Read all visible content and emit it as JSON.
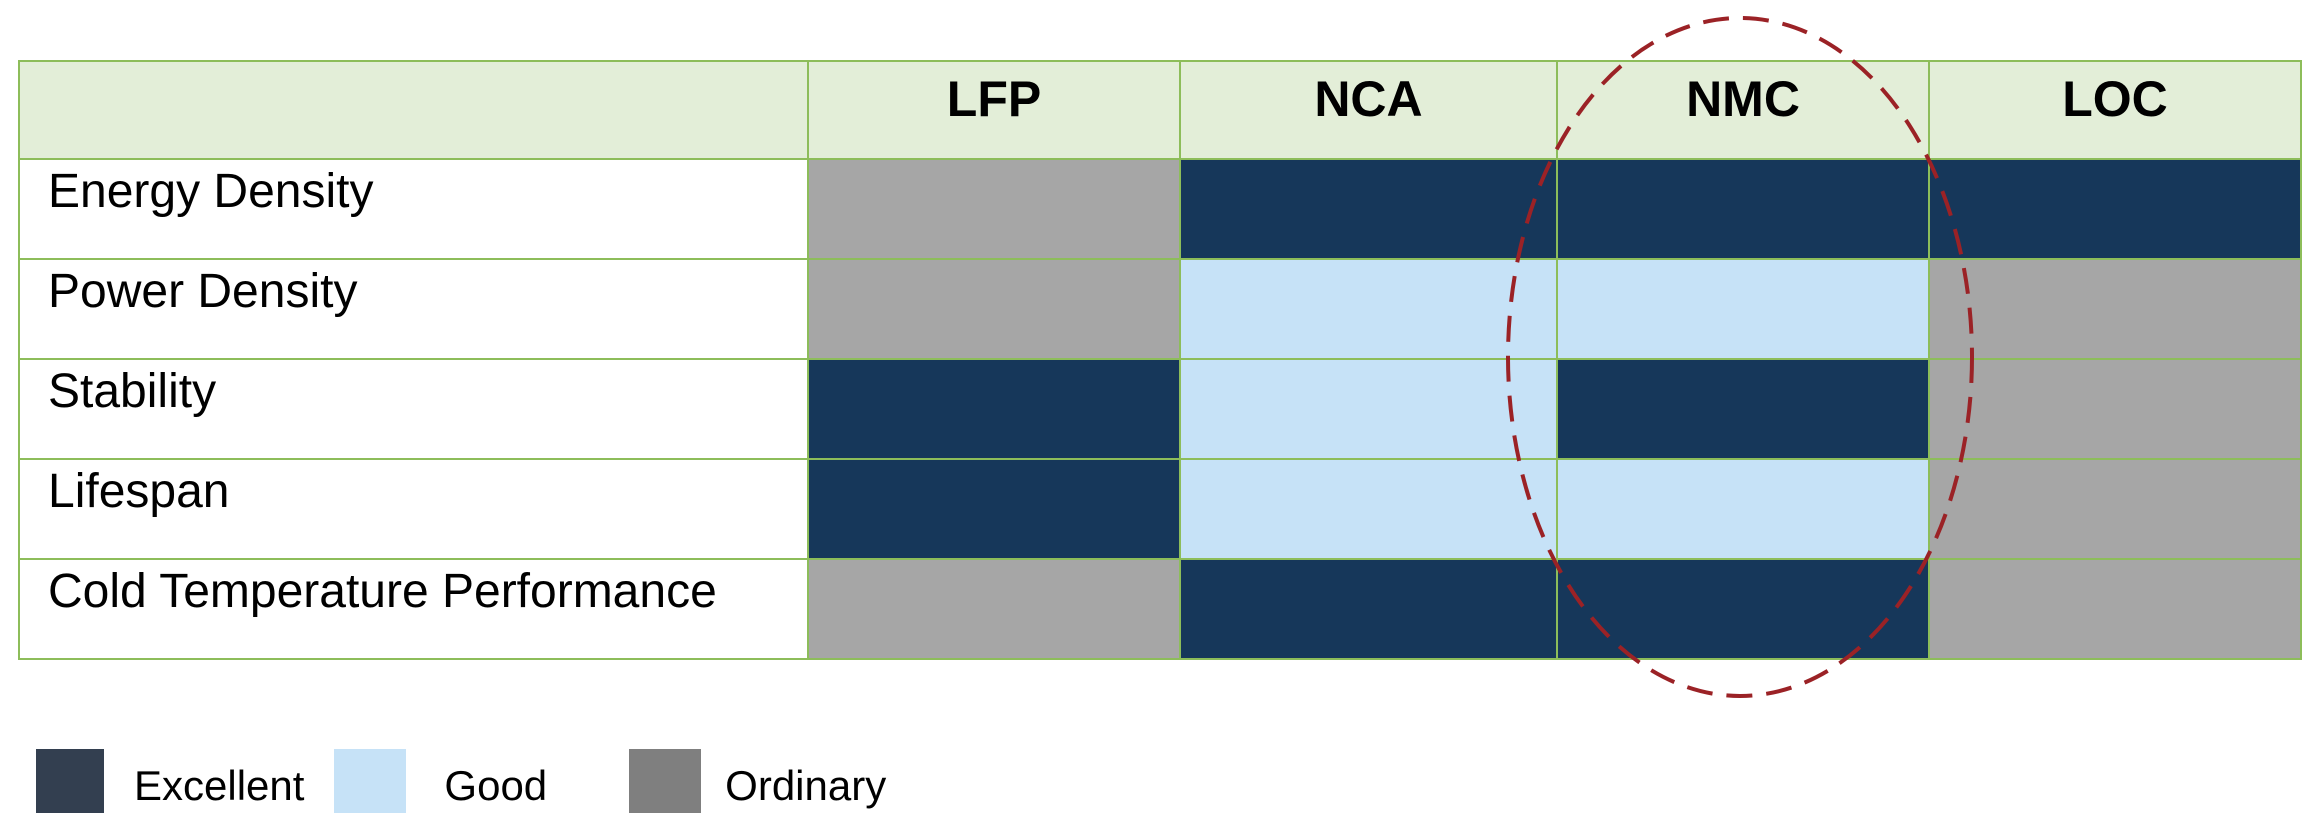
{
  "chart_data": {
    "type": "heatmap",
    "columns": [
      "LFP",
      "NCA",
      "NMC",
      "LOC"
    ],
    "rows": [
      {
        "label": "Energy Density",
        "ratings": [
          "Ordinary",
          "Excellent",
          "Excellent",
          "Excellent"
        ]
      },
      {
        "label": "Power Density",
        "ratings": [
          "Ordinary",
          "Good",
          "Good",
          "Ordinary"
        ]
      },
      {
        "label": "Stability",
        "ratings": [
          "Excellent",
          "Good",
          "Excellent",
          "Ordinary"
        ]
      },
      {
        "label": "Lifespan",
        "ratings": [
          "Excellent",
          "Good",
          "Good",
          "Ordinary"
        ]
      },
      {
        "label": "Cold Temperature Performance",
        "ratings": [
          "Ordinary",
          "Excellent",
          "Excellent",
          "Ordinary"
        ]
      }
    ],
    "cell_colors": {
      "Excellent": "#16375a",
      "Good": "#c6e2f7",
      "Ordinary": "#a6a6a6"
    },
    "header_background": "#e3eed8",
    "grid_color": "#8dbd5a",
    "highlighted_column": "NMC",
    "highlight_color": "#9b2226",
    "legend": [
      {
        "label": "Excellent",
        "color": "#333f50"
      },
      {
        "label": "Good",
        "color": "#c6e2f7"
      },
      {
        "label": "Ordinary",
        "color": "#7f7f7f"
      }
    ]
  }
}
